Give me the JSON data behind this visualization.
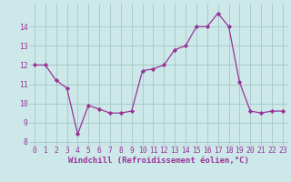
{
  "x": [
    0,
    1,
    2,
    3,
    4,
    5,
    6,
    7,
    8,
    9,
    10,
    11,
    12,
    13,
    14,
    15,
    16,
    17,
    18,
    19,
    20,
    21,
    22,
    23
  ],
  "y": [
    12.0,
    12.0,
    11.2,
    10.8,
    8.4,
    9.9,
    9.7,
    9.5,
    9.5,
    9.6,
    11.7,
    11.8,
    12.0,
    12.8,
    13.0,
    14.0,
    14.0,
    14.7,
    14.0,
    11.1,
    9.6,
    9.5,
    9.6,
    9.6
  ],
  "line_color": "#993399",
  "marker_color": "#993399",
  "bg_color": "#cce8e8",
  "grid_color": "#aacccc",
  "xlabel": "Windchill (Refroidissement éolien,°C)",
  "xlim": [
    -0.5,
    23.5
  ],
  "ylim": [
    7.8,
    15.2
  ],
  "xticks": [
    0,
    1,
    2,
    3,
    4,
    5,
    6,
    7,
    8,
    9,
    10,
    11,
    12,
    13,
    14,
    15,
    16,
    17,
    18,
    19,
    20,
    21,
    22,
    23
  ],
  "yticks": [
    8,
    9,
    10,
    11,
    12,
    13,
    14
  ],
  "tick_color": "#993399",
  "label_fontsize": 6.5,
  "tick_fontsize": 5.8
}
